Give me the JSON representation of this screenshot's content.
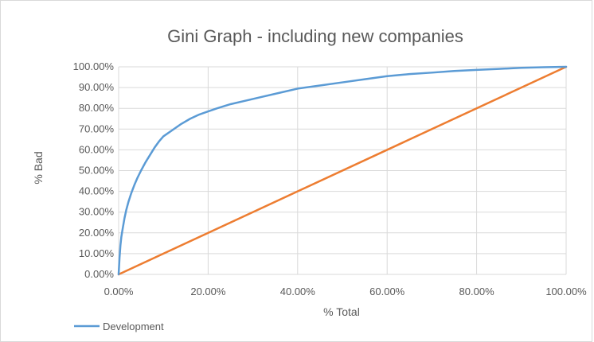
{
  "chart_data": {
    "type": "line",
    "title": "Gini Graph - including new companies",
    "xlabel": "% Total",
    "ylabel": "% Bad",
    "xlim": [
      0,
      100
    ],
    "ylim": [
      0,
      100
    ],
    "x_ticks": [
      "0.00%",
      "20.00%",
      "40.00%",
      "60.00%",
      "80.00%",
      "100.00%"
    ],
    "y_ticks": [
      "0.00%",
      "10.00%",
      "20.00%",
      "30.00%",
      "40.00%",
      "50.00%",
      "60.00%",
      "70.00%",
      "80.00%",
      "90.00%",
      "100.00%"
    ],
    "grid": true,
    "legend_position": "bottom",
    "series": [
      {
        "name": "Development",
        "color": "#5b9bd5",
        "points": [
          [
            0,
            0
          ],
          [
            0.2,
            8
          ],
          [
            0.4,
            14
          ],
          [
            0.6,
            18
          ],
          [
            0.9,
            22
          ],
          [
            1.3,
            27
          ],
          [
            1.7,
            31
          ],
          [
            2.2,
            35
          ],
          [
            2.8,
            39
          ],
          [
            3.5,
            43
          ],
          [
            4.2,
            46.5
          ],
          [
            5,
            50
          ],
          [
            6,
            54
          ],
          [
            7,
            57.5
          ],
          [
            8,
            61
          ],
          [
            9,
            64
          ],
          [
            10,
            66.5
          ],
          [
            12,
            69.5
          ],
          [
            14,
            72.5
          ],
          [
            16,
            75
          ],
          [
            18,
            77
          ],
          [
            20,
            78.5
          ],
          [
            22,
            80
          ],
          [
            25,
            82
          ],
          [
            28,
            83.5
          ],
          [
            32,
            85.5
          ],
          [
            36,
            87.5
          ],
          [
            40,
            89.5
          ],
          [
            45,
            91
          ],
          [
            50,
            92.5
          ],
          [
            55,
            94
          ],
          [
            60,
            95.5
          ],
          [
            65,
            96.5
          ],
          [
            70,
            97.2
          ],
          [
            75,
            98
          ],
          [
            80,
            98.5
          ],
          [
            85,
            99
          ],
          [
            90,
            99.5
          ],
          [
            95,
            99.8
          ],
          [
            100,
            100
          ]
        ]
      },
      {
        "name": "",
        "color": "#ed7d31",
        "points": [
          [
            0,
            0
          ],
          [
            100,
            100
          ]
        ]
      }
    ]
  }
}
